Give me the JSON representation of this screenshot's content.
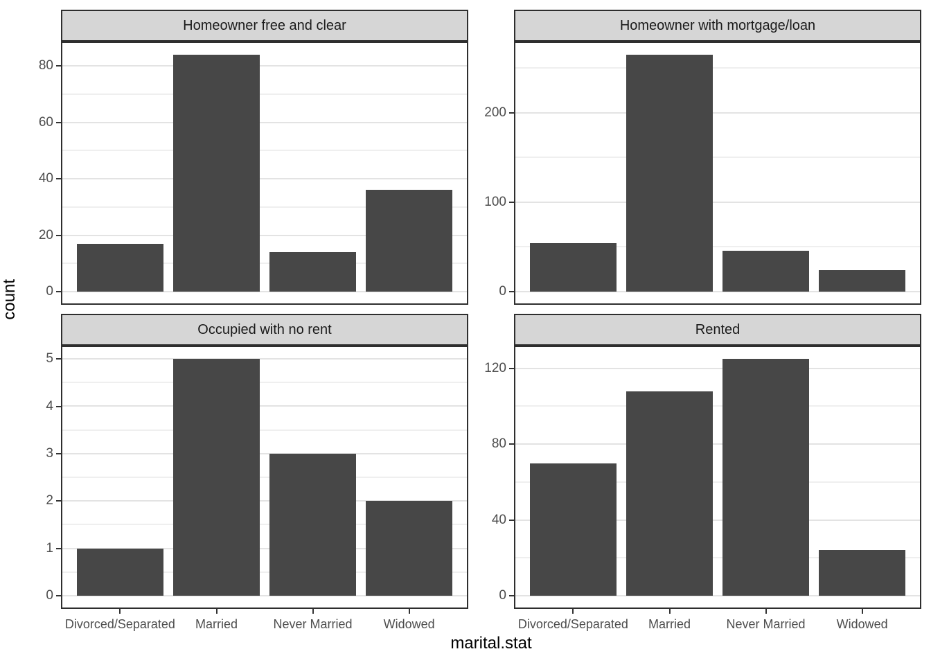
{
  "figure": {
    "y_axis_title": "count",
    "x_axis_title": "marital.stat"
  },
  "chart_data": {
    "type": "bar",
    "title": "",
    "xlabel": "marital.stat",
    "ylabel": "count",
    "legend": "none",
    "grid": "on",
    "facet_layout": "2x2",
    "categories": [
      "Divorced/Separated",
      "Married",
      "Never Married",
      "Widowed"
    ],
    "facets": [
      {
        "title": "Homeowner free and clear",
        "values": [
          17,
          84,
          14,
          36
        ],
        "y_major_ticks": [
          0,
          20,
          40,
          60,
          80
        ],
        "y_minor_ticks": [
          10,
          30,
          50,
          70
        ],
        "y_max_data": 84,
        "ylim": [
          -4.2,
          92.4
        ]
      },
      {
        "title": "Homeowner with mortgage/loan",
        "values": [
          54,
          265,
          46,
          24
        ],
        "y_major_ticks": [
          0,
          100,
          200
        ],
        "y_minor_ticks": [
          50,
          150,
          250
        ],
        "y_max_data": 265,
        "ylim": [
          -13.25,
          291.5
        ]
      },
      {
        "title": "Occupied with no rent",
        "values": [
          1,
          5,
          3,
          2
        ],
        "y_major_ticks": [
          0,
          1,
          2,
          3,
          4,
          5
        ],
        "y_minor_ticks": [
          0.5,
          1.5,
          2.5,
          3.5,
          4.5
        ],
        "y_max_data": 5,
        "ylim": [
          -0.25,
          5.5
        ]
      },
      {
        "title": "Rented",
        "values": [
          70,
          108,
          125,
          24
        ],
        "y_major_ticks": [
          0,
          40,
          80,
          120
        ],
        "y_minor_ticks": [
          20,
          60,
          100
        ],
        "y_max_data": 125,
        "ylim": [
          -6.25,
          137.5
        ]
      }
    ],
    "colors": {
      "bar_fill": "#474747",
      "strip_background": "#D6D6D6",
      "panel_background": "#FFFFFF",
      "grid_major": "#E3E3E3",
      "grid_minor": "#EFEFEF",
      "panel_border": "#2E2E2E",
      "axis_text": "#4D4D4D",
      "title_text": "#000000"
    }
  }
}
